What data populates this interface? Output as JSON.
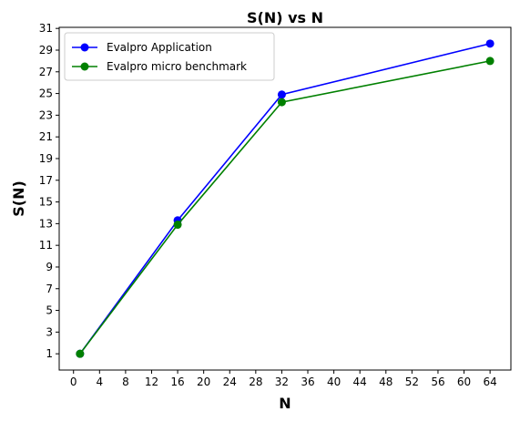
{
  "chart_data": {
    "type": "line",
    "title": "S(N) vs N",
    "xlabel": "N",
    "ylabel": "S(N)",
    "xlim": [
      -2.2,
      67.2
    ],
    "ylim": [
      -0.5,
      31.1
    ],
    "xticks": [
      0,
      4,
      8,
      12,
      16,
      20,
      24,
      28,
      32,
      36,
      40,
      44,
      48,
      52,
      56,
      60,
      64
    ],
    "yticks": [
      1,
      3,
      5,
      7,
      9,
      11,
      13,
      15,
      17,
      19,
      21,
      23,
      25,
      27,
      29,
      31
    ],
    "grid": false,
    "legend_position": "top-left",
    "x": [
      1,
      16,
      32,
      64
    ],
    "series": [
      {
        "name": "Evalpro Application",
        "color": "#0000ff",
        "values": [
          1.0,
          13.3,
          24.9,
          29.6
        ]
      },
      {
        "name": "Evalpro micro benchmark",
        "color": "#008000",
        "values": [
          1.0,
          12.9,
          24.2,
          28.0
        ]
      }
    ]
  }
}
